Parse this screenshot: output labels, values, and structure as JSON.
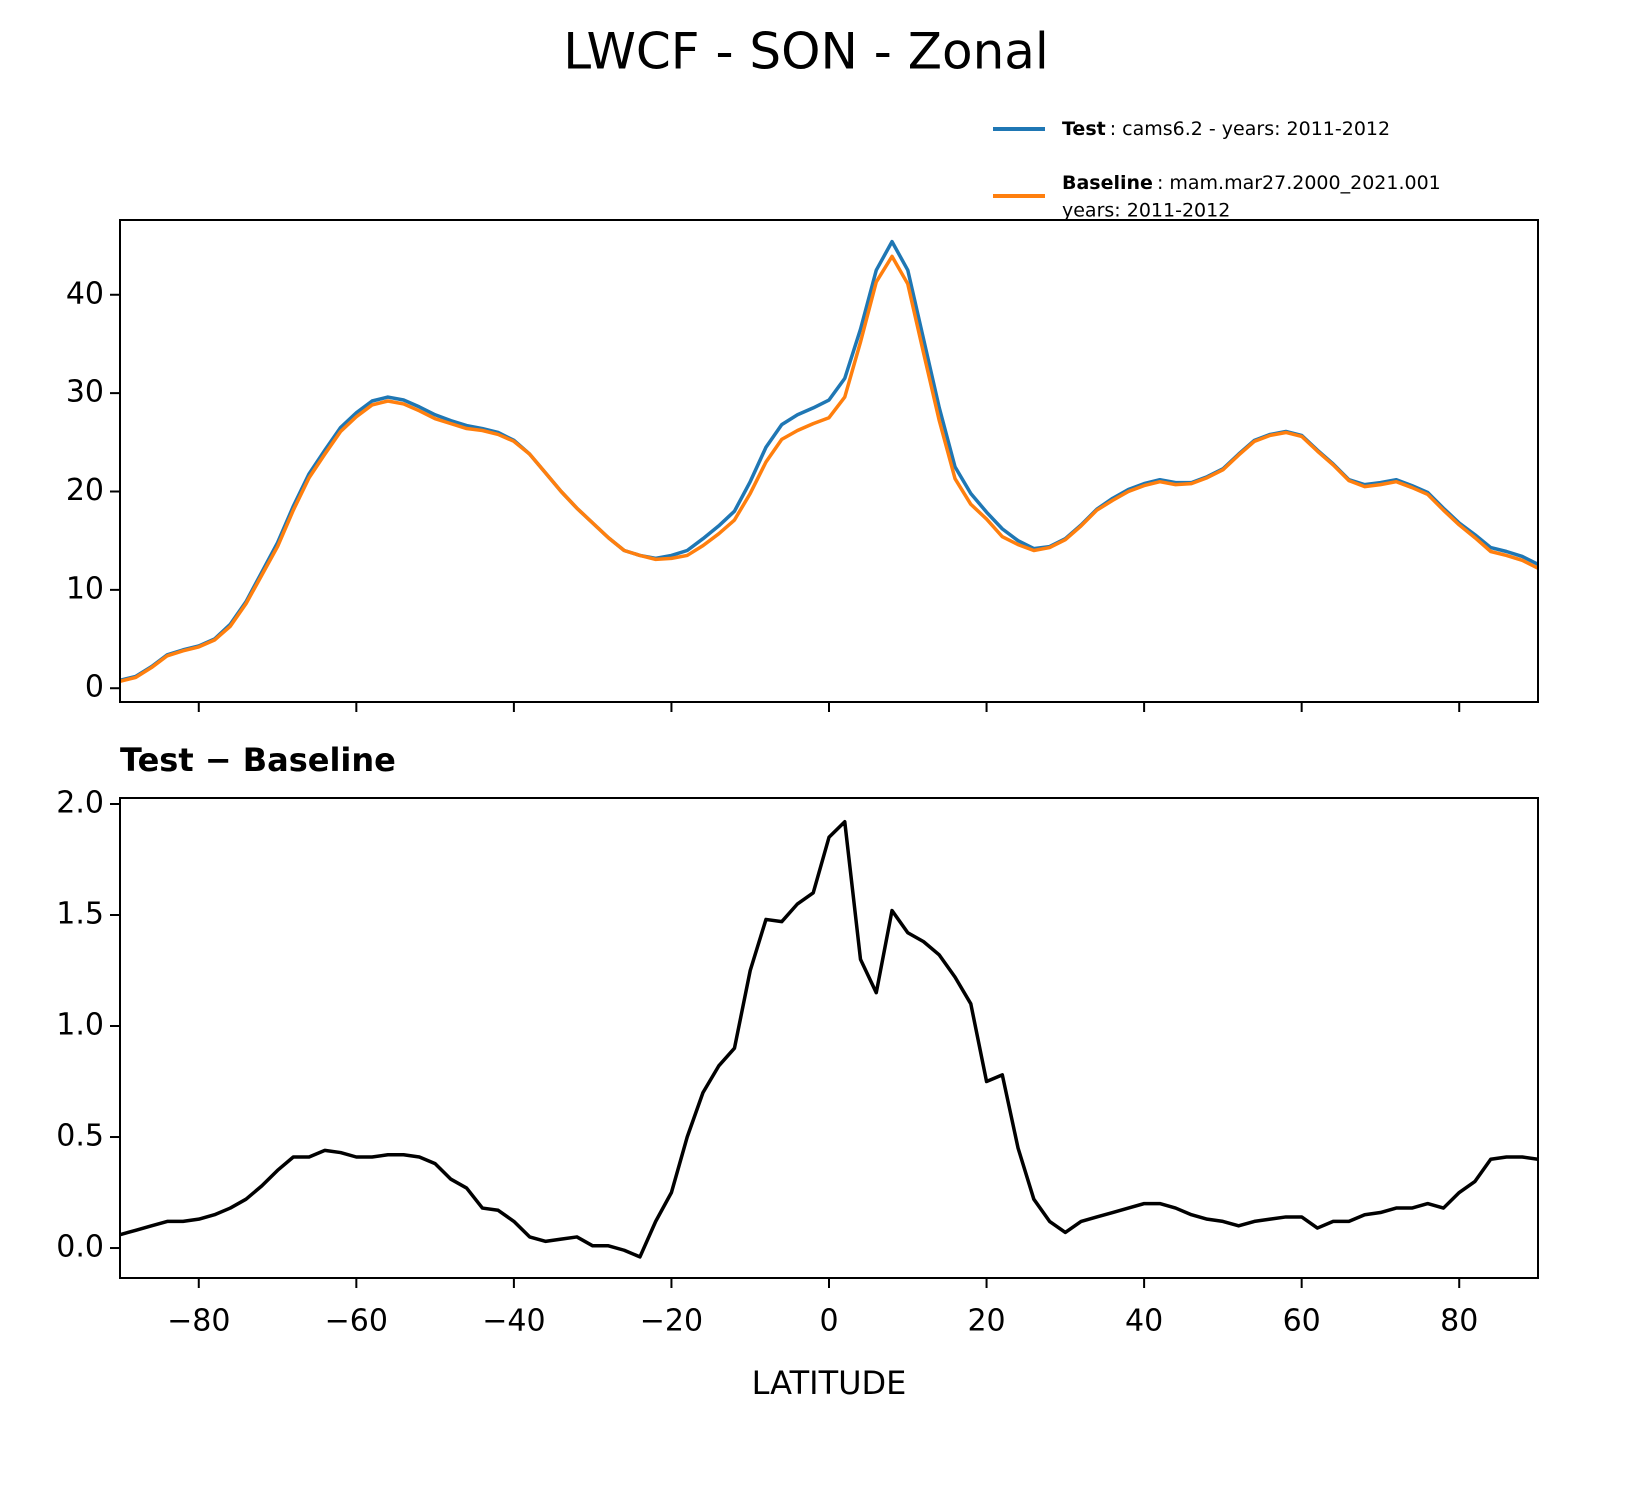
{
  "title": "LWCF - SON - Zonal",
  "chart_data": [
    {
      "type": "line",
      "x": [
        -90,
        -88,
        -86,
        -84,
        -82,
        -80,
        -78,
        -76,
        -74,
        -72,
        -70,
        -68,
        -66,
        -64,
        -62,
        -60,
        -58,
        -56,
        -54,
        -52,
        -50,
        -48,
        -46,
        -44,
        -42,
        -40,
        -38,
        -36,
        -34,
        -32,
        -30,
        -28,
        -26,
        -24,
        -22,
        -20,
        -18,
        -16,
        -14,
        -12,
        -10,
        -8,
        -6,
        -4,
        -2,
        0,
        2,
        4,
        6,
        8,
        10,
        12,
        14,
        16,
        18,
        20,
        22,
        24,
        26,
        28,
        30,
        32,
        34,
        36,
        38,
        40,
        42,
        44,
        46,
        48,
        50,
        52,
        54,
        56,
        58,
        60,
        62,
        64,
        66,
        68,
        70,
        72,
        74,
        76,
        78,
        80,
        82,
        84,
        86,
        88,
        90
      ],
      "series": [
        {
          "name": "Test",
          "description": [
            ": cams6.2 - years: 2011-2012"
          ],
          "color": "#1f77b4",
          "values": [
            0.8,
            1.2,
            2.2,
            3.4,
            3.9,
            4.3,
            5.0,
            6.5,
            8.8,
            11.8,
            14.8,
            18.5,
            21.8,
            24.2,
            26.5,
            28.0,
            29.2,
            29.6,
            29.3,
            28.6,
            27.8,
            27.2,
            26.7,
            26.4,
            26.0,
            25.2,
            23.8,
            21.9,
            20.0,
            18.3,
            16.8,
            15.3,
            14.0,
            13.5,
            13.2,
            13.5,
            14.0,
            15.2,
            16.5,
            18.0,
            21.0,
            24.5,
            26.8,
            27.8,
            28.5,
            29.3,
            31.5,
            36.5,
            42.5,
            45.4,
            42.5,
            35.5,
            28.5,
            22.5,
            19.8,
            17.9,
            16.2,
            15.0,
            14.2,
            14.4,
            15.2,
            16.6,
            18.2,
            19.3,
            20.2,
            20.8,
            21.2,
            20.9,
            20.9,
            21.5,
            22.3,
            23.8,
            25.2,
            25.8,
            26.1,
            25.7,
            24.2,
            22.8,
            21.2,
            20.7,
            20.9,
            21.2,
            20.6,
            19.9,
            18.3,
            16.8,
            15.6,
            14.3,
            13.9,
            13.4,
            12.6
          ]
        },
        {
          "name": "Baseline",
          "description": [
            ": mam.mar27.2000_2021.001",
            "years: 2011-2012"
          ],
          "color": "#ff7f0e",
          "values": [
            0.7,
            1.1,
            2.1,
            3.3,
            3.8,
            4.2,
            4.9,
            6.3,
            8.6,
            11.5,
            14.4,
            18.1,
            21.4,
            23.8,
            26.1,
            27.6,
            28.8,
            29.2,
            28.9,
            28.2,
            27.4,
            26.9,
            26.4,
            26.2,
            25.8,
            25.1,
            23.8,
            21.9,
            20.0,
            18.3,
            16.8,
            15.3,
            14.0,
            13.5,
            13.1,
            13.2,
            13.5,
            14.5,
            15.7,
            17.1,
            19.8,
            23.0,
            25.3,
            26.2,
            26.9,
            27.5,
            29.6,
            35.2,
            41.3,
            43.9,
            41.1,
            34.1,
            27.2,
            21.3,
            18.7,
            17.2,
            15.4,
            14.6,
            14.0,
            14.3,
            15.1,
            16.5,
            18.1,
            19.1,
            20.0,
            20.6,
            21.0,
            20.7,
            20.8,
            21.4,
            22.2,
            23.7,
            25.1,
            25.7,
            26.0,
            25.6,
            24.1,
            22.7,
            21.1,
            20.5,
            20.7,
            21.0,
            20.4,
            19.7,
            18.1,
            16.6,
            15.3,
            13.9,
            13.5,
            13.0,
            12.2
          ]
        }
      ],
      "xlim": [
        -90,
        90
      ],
      "ylim": [
        -1.4,
        47.6
      ],
      "yticks": [
        0,
        10,
        20,
        30,
        40
      ],
      "legend": "upper right"
    },
    {
      "type": "line",
      "title": "Test − Baseline",
      "xlabel": "LATITUDE",
      "x": [
        -90,
        -88,
        -86,
        -84,
        -82,
        -80,
        -78,
        -76,
        -74,
        -72,
        -70,
        -68,
        -66,
        -64,
        -62,
        -60,
        -58,
        -56,
        -54,
        -52,
        -50,
        -48,
        -46,
        -44,
        -42,
        -40,
        -38,
        -36,
        -34,
        -32,
        -30,
        -28,
        -26,
        -24,
        -22,
        -20,
        -18,
        -16,
        -14,
        -12,
        -10,
        -8,
        -6,
        -4,
        -2,
        0,
        2,
        4,
        6,
        8,
        10,
        12,
        14,
        16,
        18,
        20,
        22,
        24,
        26,
        28,
        30,
        32,
        34,
        36,
        38,
        40,
        42,
        44,
        46,
        48,
        50,
        52,
        54,
        56,
        58,
        60,
        62,
        64,
        66,
        68,
        70,
        72,
        74,
        76,
        78,
        80,
        82,
        84,
        86,
        88,
        90
      ],
      "color": "#000000",
      "values": [
        0.06,
        0.08,
        0.1,
        0.12,
        0.12,
        0.13,
        0.15,
        0.18,
        0.22,
        0.28,
        0.35,
        0.41,
        0.41,
        0.44,
        0.43,
        0.41,
        0.41,
        0.42,
        0.42,
        0.41,
        0.38,
        0.31,
        0.27,
        0.18,
        0.17,
        0.12,
        0.05,
        0.03,
        0.04,
        0.05,
        0.01,
        0.01,
        -0.01,
        -0.04,
        0.12,
        0.25,
        0.5,
        0.7,
        0.82,
        0.9,
        1.25,
        1.48,
        1.47,
        1.55,
        1.6,
        1.85,
        1.92,
        1.3,
        1.15,
        1.52,
        1.42,
        1.38,
        1.32,
        1.22,
        1.1,
        0.75,
        0.78,
        0.45,
        0.22,
        0.12,
        0.07,
        0.12,
        0.14,
        0.16,
        0.18,
        0.2,
        0.2,
        0.18,
        0.15,
        0.13,
        0.12,
        0.1,
        0.12,
        0.13,
        0.14,
        0.14,
        0.09,
        0.12,
        0.12,
        0.15,
        0.16,
        0.18,
        0.18,
        0.2,
        0.18,
        0.25,
        0.3,
        0.4,
        0.41,
        0.41,
        0.4
      ],
      "xlim": [
        -90,
        90
      ],
      "ylim": [
        -0.135,
        2.027
      ],
      "xticks": [
        {
          "value": -80,
          "label": "−80"
        },
        {
          "value": -60,
          "label": "−60"
        },
        {
          "value": -40,
          "label": "−40"
        },
        {
          "value": -20,
          "label": "−20"
        },
        0,
        20,
        40,
        60,
        80
      ],
      "yticks": [
        {
          "value": 0,
          "label": "0.0"
        },
        0.5,
        {
          "value": 1,
          "label": "1.0"
        },
        1.5,
        {
          "value": 2,
          "label": "2.0"
        }
      ]
    }
  ]
}
